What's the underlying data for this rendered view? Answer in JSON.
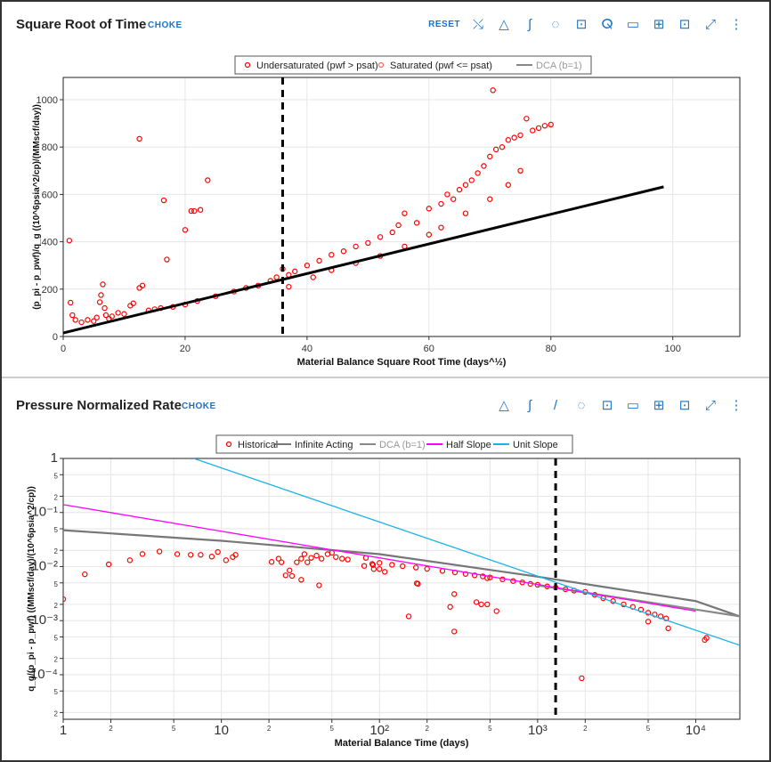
{
  "panels": [
    {
      "title": "Square Root of Time",
      "subtitle": "CHOKE",
      "reset_label": "RESET",
      "toolbar_icons": [
        "axis-lock-icon",
        "triangle-icon",
        "integral-icon",
        "lasso-select-icon",
        "unlock-icon",
        "lasso-icon",
        "comment-icon",
        "table-icon",
        "fit-icon",
        "expand-icon",
        "more-icon"
      ]
    },
    {
      "title": "Pressure Normalized Rate",
      "subtitle": "CHOKE",
      "toolbar_icons": [
        "triangle-icon",
        "integral-icon",
        "line-icon",
        "lasso-select-icon",
        "unlock-icon",
        "comment-icon",
        "table-icon",
        "fit-icon",
        "expand-icon",
        "more-icon"
      ]
    }
  ],
  "chart_data": [
    {
      "type": "scatter",
      "xlabel": "Material Balance Square Root Time (days^1/2)",
      "ylabel": "(p_pi - p_pwf)/q_g ((10^6psia^2/cp)/(MMscf/day))",
      "xlim": [
        0,
        111
      ],
      "ylim": [
        0,
        1094
      ],
      "xticks": [
        0,
        20,
        40,
        60,
        80,
        100
      ],
      "yticks": [
        0,
        200,
        400,
        600,
        800,
        1000
      ],
      "grid": true,
      "legend_position": "top",
      "legend": [
        "Undersaturated (pwf > psat)",
        "Saturated (pwf <= psat)",
        "DCA (b=1)"
      ],
      "vline_x": 36,
      "series": [
        {
          "name": "Undersaturated (pwf > psat)",
          "color": "#ff0000",
          "points": [
            [
              1,
              405
            ],
            [
              12.5,
              835
            ],
            [
              16.5,
              575
            ],
            [
              17,
              325
            ],
            [
              20,
              450
            ],
            [
              21,
              530
            ],
            [
              21.5,
              530
            ],
            [
              22.5,
              535
            ],
            [
              23.7,
              660
            ],
            [
              1.2,
              143
            ],
            [
              1.5,
              90
            ],
            [
              2,
              70
            ],
            [
              3,
              60
            ],
            [
              4,
              70
            ],
            [
              5,
              65
            ],
            [
              5.5,
              80
            ],
            [
              6,
              145
            ],
            [
              6.2,
              175
            ],
            [
              6.5,
              220
            ],
            [
              6.8,
              120
            ],
            [
              7,
              90
            ],
            [
              7.5,
              75
            ],
            [
              8,
              85
            ],
            [
              9,
              100
            ],
            [
              10,
              95
            ],
            [
              11,
              130
            ],
            [
              11.5,
              140
            ],
            [
              12.5,
              205
            ],
            [
              13,
              215
            ],
            [
              14,
              110
            ],
            [
              15,
              115
            ],
            [
              16,
              120
            ],
            [
              18,
              125
            ],
            [
              20,
              135
            ],
            [
              22,
              150
            ],
            [
              25,
              170
            ],
            [
              28,
              190
            ],
            [
              30,
              205
            ],
            [
              32,
              215
            ],
            [
              34,
              235
            ],
            [
              35,
              250
            ],
            [
              36,
              285
            ],
            [
              37,
              260
            ],
            [
              38,
              275
            ],
            [
              40,
              300
            ],
            [
              42,
              320
            ],
            [
              44,
              345
            ],
            [
              46,
              360
            ],
            [
              48,
              380
            ],
            [
              50,
              395
            ],
            [
              52,
              420
            ],
            [
              54,
              440
            ],
            [
              55,
              470
            ],
            [
              56,
              520
            ],
            [
              58,
              480
            ],
            [
              60,
              540
            ],
            [
              62,
              560
            ],
            [
              63,
              600
            ],
            [
              64,
              580
            ],
            [
              65,
              620
            ],
            [
              66,
              640
            ],
            [
              67,
              660
            ],
            [
              68,
              690
            ],
            [
              69,
              720
            ],
            [
              70,
              760
            ],
            [
              70.5,
              1040
            ],
            [
              71,
              790
            ],
            [
              72,
              800
            ],
            [
              73,
              830
            ],
            [
              74,
              840
            ],
            [
              75,
              850
            ],
            [
              76,
              920
            ],
            [
              77,
              870
            ],
            [
              78,
              880
            ],
            [
              79,
              890
            ],
            [
              80,
              895
            ],
            [
              37,
              210
            ],
            [
              41,
              250
            ],
            [
              44,
              280
            ],
            [
              48,
              310
            ],
            [
              52,
              340
            ],
            [
              56,
              380
            ],
            [
              60,
              430
            ],
            [
              62,
              460
            ],
            [
              66,
              520
            ],
            [
              70,
              580
            ],
            [
              73,
              640
            ],
            [
              75,
              700
            ]
          ]
        },
        {
          "name": "DCA (b=1)",
          "color": "#000000",
          "line": [
            [
              0,
              15
            ],
            [
              98.5,
              632
            ]
          ]
        }
      ]
    },
    {
      "type": "scatter",
      "xlabel": "Material Balance Time (days)",
      "ylabel": "q_g/(p_pi - p_pwf) ((MMscf/day)/(10^6psia^2/cp))",
      "xscale": "log",
      "yscale": "log",
      "xlim": [
        1,
        19000
      ],
      "ylim": [
        1.5e-05,
        1
      ],
      "grid": true,
      "legend_position": "top",
      "legend": [
        "Historical",
        "Infinite Acting",
        "DCA (b=1)",
        "Half Slope",
        "Unit Slope"
      ],
      "vline_x": 1300,
      "series": [
        {
          "name": "Historical",
          "color": "#ff0000",
          "points": [
            [
              1,
              0.0025
            ],
            [
              1.37,
              0.0072
            ],
            [
              1.94,
              0.011
            ],
            [
              2.64,
              0.0131
            ],
            [
              3.17,
              0.0171
            ],
            [
              4.06,
              0.019
            ],
            [
              5.26,
              0.017
            ],
            [
              6.4,
              0.0165
            ],
            [
              7.4,
              0.0165
            ],
            [
              8.7,
              0.0153
            ],
            [
              9.5,
              0.0186
            ],
            [
              10.7,
              0.0131
            ],
            [
              11.8,
              0.015
            ],
            [
              12.3,
              0.0165
            ],
            [
              20.8,
              0.0122
            ],
            [
              23,
              0.014
            ],
            [
              24,
              0.012
            ],
            [
              25.5,
              0.0069
            ],
            [
              27,
              0.0085
            ],
            [
              28,
              0.0067
            ],
            [
              30,
              0.012
            ],
            [
              32,
              0.014
            ],
            [
              33.5,
              0.017
            ],
            [
              32,
              0.0057
            ],
            [
              35,
              0.012
            ],
            [
              37,
              0.0145
            ],
            [
              40,
              0.016
            ],
            [
              41.5,
              0.0045
            ],
            [
              43,
              0.014
            ],
            [
              47,
              0.017
            ],
            [
              50,
              0.018
            ],
            [
              53,
              0.015
            ],
            [
              58,
              0.014
            ],
            [
              63,
              0.0135
            ],
            [
              80,
              0.0103
            ],
            [
              82,
              0.0145
            ],
            [
              91,
              0.0107
            ],
            [
              92,
              0.009
            ],
            [
              100,
              0.009
            ],
            [
              108,
              0.008
            ],
            [
              153,
              0.0012
            ],
            [
              172,
              0.0049
            ],
            [
              175,
              0.0048
            ],
            [
              280,
              0.0018
            ],
            [
              297,
              0.0031
            ],
            [
              297,
              0.00063
            ],
            [
              410,
              0.0022
            ],
            [
              440,
              0.002
            ],
            [
              480,
              0.002
            ],
            [
              550,
              0.0015
            ],
            [
              480,
              0.0061
            ],
            [
              1900,
              8.6e-05
            ],
            [
              5000,
              0.00096
            ],
            [
              6700,
              0.00072
            ],
            [
              11400,
              0.00044
            ],
            [
              11700,
              0.00048
            ],
            [
              90,
              0.0112
            ],
            [
              100,
              0.0117
            ],
            [
              120,
              0.0108
            ],
            [
              140,
              0.0102
            ],
            [
              170,
              0.0096
            ],
            [
              200,
              0.0091
            ],
            [
              250,
              0.0083
            ],
            [
              300,
              0.0078
            ],
            [
              350,
              0.0073
            ],
            [
              400,
              0.0069
            ],
            [
              450,
              0.0066
            ],
            [
              500,
              0.0063
            ],
            [
              600,
              0.0058
            ],
            [
              700,
              0.0054
            ],
            [
              800,
              0.0051
            ],
            [
              900,
              0.0048
            ],
            [
              1000,
              0.0046
            ],
            [
              1150,
              0.0043
            ],
            [
              1300,
              0.0041
            ],
            [
              1500,
              0.0038
            ],
            [
              1700,
              0.0036
            ],
            [
              2000,
              0.0034
            ],
            [
              2300,
              0.003
            ],
            [
              2600,
              0.0026
            ],
            [
              3000,
              0.0023
            ],
            [
              3500,
              0.002
            ],
            [
              4000,
              0.0018
            ],
            [
              4500,
              0.0016
            ],
            [
              5000,
              0.0014
            ],
            [
              5500,
              0.0013
            ],
            [
              6000,
              0.0012
            ],
            [
              6500,
              0.0011
            ]
          ]
        },
        {
          "name": "Infinite Acting",
          "color": "#777777",
          "line": [
            [
              1,
              0.047
            ],
            [
              10,
              0.03
            ],
            [
              100,
              0.017
            ],
            [
              1000,
              0.0065
            ],
            [
              10000,
              0.0023
            ],
            [
              19000,
              0.0012
            ]
          ]
        },
        {
          "name": "DCA (b=1)",
          "color": "#888888",
          "line": [
            [
              1000,
              0.0045
            ],
            [
              5000,
              0.0022
            ],
            [
              19000,
              0.0012
            ]
          ]
        },
        {
          "name": "Half Slope",
          "color": "#ff00ff",
          "line": [
            [
              1,
              0.14
            ],
            [
              10000,
              0.0015
            ]
          ]
        },
        {
          "name": "Unit Slope",
          "color": "#1ab2e8",
          "line": [
            [
              6.7,
              1
            ],
            [
              19000,
              0.00035
            ]
          ]
        }
      ]
    }
  ]
}
